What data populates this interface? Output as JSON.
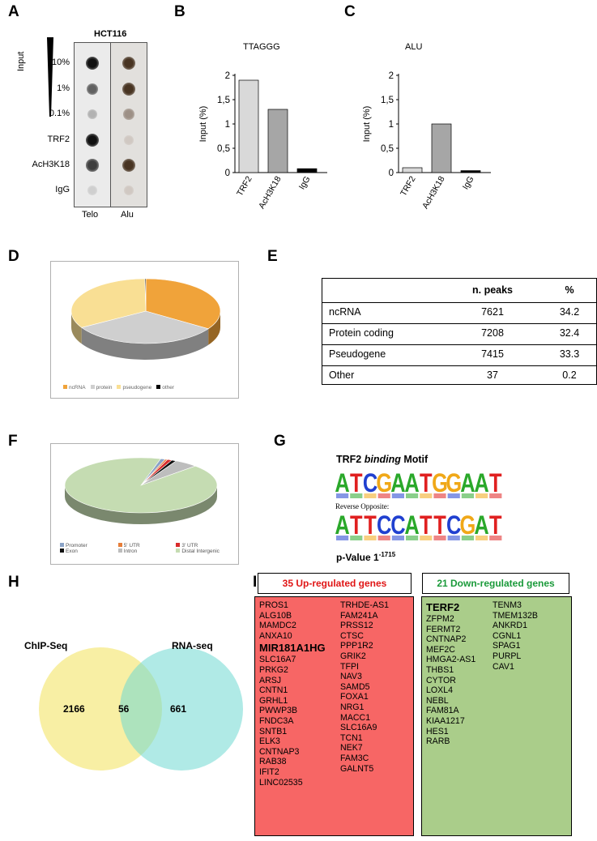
{
  "panels": {
    "A": "A",
    "B": "B",
    "C": "C",
    "D": "D",
    "E": "E",
    "F": "F",
    "G": "G",
    "H": "H",
    "I": "I"
  },
  "panel_a": {
    "title": "HCT116",
    "input_label": "Input",
    "row_labels": [
      "10%",
      "1%",
      "0.1%",
      "TRF2",
      "AcH3K18",
      "IgG"
    ],
    "column_labels": [
      "Telo",
      "Alu"
    ],
    "telo_intensity": [
      0.95,
      0.6,
      0.25,
      0.95,
      0.75,
      0.12
    ],
    "alu_intensity": [
      0.9,
      0.9,
      0.4,
      0.1,
      0.9,
      0.1
    ]
  },
  "chart_data": [
    {
      "type": "bar",
      "title": "TTAGGG",
      "categories": [
        "TRF2",
        "AcH3K18",
        "IgG"
      ],
      "values": [
        1.9,
        1.3,
        0.08
      ],
      "colors": [
        "#d9d9d9",
        "#a6a6a6",
        "#000000"
      ],
      "ylabel": "Input (%)",
      "yticks": [
        "0",
        "0,5",
        "1",
        "1,5",
        "2"
      ],
      "ylim": [
        0,
        2
      ]
    },
    {
      "type": "bar",
      "title": "ALU",
      "categories": [
        "TRF2",
        "AcH3K18",
        "IgG"
      ],
      "values": [
        0.1,
        1.0,
        0.04
      ],
      "colors": [
        "#d9d9d9",
        "#a6a6a6",
        "#000000"
      ],
      "ylabel": "Input  (%)",
      "yticks": [
        "0",
        "0,5",
        "1",
        "1,5",
        "2"
      ],
      "ylim": [
        0,
        2
      ]
    },
    {
      "type": "pie",
      "labels": [
        "ncRNA",
        "protein",
        "pseudogene",
        "other"
      ],
      "values": [
        34.2,
        32.4,
        33.3,
        0.2
      ],
      "colors": [
        "#f0a33a",
        "#cfcfcf",
        "#f9df94",
        "#000000"
      ]
    },
    {
      "type": "table",
      "columns": [
        "",
        "n. peaks",
        "%"
      ],
      "rows": [
        [
          "ncRNA",
          "7621",
          "34.2"
        ],
        [
          "Protein coding",
          "7208",
          "32.4"
        ],
        [
          "Pseudogene",
          "7415",
          "33.3"
        ],
        [
          "Other",
          "37",
          "0.2"
        ]
      ]
    },
    {
      "type": "pie",
      "labels": [
        "Promoter",
        "5' UTR",
        "3' UTR",
        "Exon",
        "Intron",
        "Distal Intergenic"
      ],
      "values": [
        1,
        0.5,
        1,
        1,
        5,
        91.5
      ],
      "colors": [
        "#8aa3c7",
        "#e67e3a",
        "#d92b2b",
        "#111111",
        "#bdbdbd",
        "#c5dcb2"
      ]
    }
  ],
  "panel_g": {
    "title_prefix": "TRF2 ",
    "title_italic": "binding",
    "title_suffix": " Motif",
    "motif_forward": "ATCGAATGGAAT",
    "reverse_label": "Reverse Opposite:",
    "motif_reverse": "ATTCCATTCGAT",
    "pvalue_label": "p-Value 1",
    "pvalue_exp": "-1715"
  },
  "panel_h": {
    "left_label": "ChIP-Seq",
    "right_label": "RNA-seq",
    "left_only": "2166",
    "overlap": "56",
    "right_only": "661"
  },
  "panel_i": {
    "up_title": "35 Up-regulated genes",
    "up_col1": [
      "PROS1",
      "ALG10B",
      "MAMDC2",
      "ANXA10",
      "MIR181A1HG",
      "SLC16A7",
      "PRKG2",
      "ARSJ",
      "CNTN1",
      "GRHL1",
      "PWWP3B",
      "FNDC3A",
      "SNTB1",
      "ELK3",
      "CNTNAP3",
      "RAB38",
      "IFIT2",
      "LINC02535"
    ],
    "up_col2": [
      "TRHDE-AS1",
      "FAM241A",
      "PRSS12",
      "CTSC",
      "PPP1R2",
      "GRIK2",
      "TFPI",
      "NAV3",
      "SAMD5",
      "FOXA1",
      "NRG1",
      "MACC1",
      "SLC16A9",
      "TCN1",
      "NEK7",
      "FAM3C",
      "GALNT5"
    ],
    "down_title": "21 Down-regulated genes",
    "down_col1": [
      "TERF2",
      "ZFPM2",
      "FERMT2",
      "CNTNAP2",
      "MEF2C",
      "HMGA2-AS1",
      "THBS1",
      "CYTOR",
      "LOXL4",
      "NEBL",
      "FAM81A",
      "KIAA1217",
      "HES1",
      "RARB"
    ],
    "down_col2": [
      "TENM3",
      "TMEM132B",
      "ANKRD1",
      "CGNL1",
      "SPAG1",
      "PURPL",
      "CAV1"
    ]
  }
}
